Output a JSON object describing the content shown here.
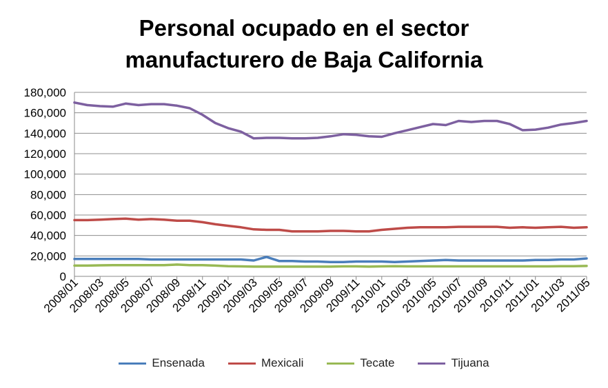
{
  "chart_data": {
    "type": "line",
    "title": "Personal ocupado en el sector manufacturero de Baja California",
    "title_lines": [
      "Personal ocupado en el sector",
      "manufacturero de Baja California"
    ],
    "ylim": [
      0,
      180000
    ],
    "yticks": [
      0,
      20000,
      40000,
      60000,
      80000,
      100000,
      120000,
      140000,
      160000,
      180000
    ],
    "ytick_labels": [
      "0",
      "20,000",
      "40,000",
      "60,000",
      "80,000",
      "100,000",
      "120,000",
      "140,000",
      "160,000",
      "180,000"
    ],
    "grid": true,
    "legend_position": "bottom",
    "x": [
      "2008/01",
      "2008/02",
      "2008/03",
      "2008/04",
      "2008/05",
      "2008/06",
      "2008/07",
      "2008/08",
      "2008/09",
      "2008/10",
      "2008/11",
      "2008/12",
      "2009/01",
      "2009/02",
      "2009/03",
      "2009/04",
      "2009/05",
      "2009/06",
      "2009/07",
      "2009/08",
      "2009/09",
      "2009/10",
      "2009/11",
      "2009/12",
      "2010/01",
      "2010/02",
      "2010/03",
      "2010/04",
      "2010/05",
      "2010/06",
      "2010/07",
      "2010/08",
      "2010/09",
      "2010/10",
      "2010/11",
      "2010/12",
      "2011/01",
      "2011/02",
      "2011/03",
      "2011/04",
      "2011/05"
    ],
    "x_tick_labels": [
      "2008/01",
      "2008/03",
      "2008/05",
      "2008/07",
      "2008/09",
      "2008/11",
      "2009/01",
      "2009/03",
      "2009/05",
      "2009/07",
      "2009/09",
      "2009/11",
      "2010/01",
      "2010/03",
      "2010/05",
      "2010/07",
      "2010/09",
      "2010/11",
      "2011/01",
      "2011/03",
      "2011/05"
    ],
    "series": [
      {
        "name": "Ensenada",
        "color": "#4a7ebb",
        "values": [
          17000,
          17000,
          17000,
          17000,
          17000,
          17000,
          16500,
          16500,
          16500,
          16500,
          16500,
          16500,
          16500,
          16500,
          15500,
          19000,
          15000,
          15000,
          14500,
          14500,
          14000,
          14000,
          14500,
          14500,
          14500,
          14000,
          14500,
          15000,
          15500,
          16000,
          15500,
          15500,
          15500,
          15500,
          15500,
          15500,
          16000,
          16000,
          16500,
          16500,
          17500
        ]
      },
      {
        "name": "Mexicali",
        "color": "#be4b48",
        "values": [
          55000,
          55000,
          55500,
          56000,
          56500,
          55500,
          56000,
          55500,
          54500,
          54500,
          53000,
          51000,
          49500,
          48000,
          46000,
          45500,
          45500,
          44000,
          44000,
          44000,
          44500,
          44500,
          44000,
          44000,
          45500,
          46500,
          47500,
          48000,
          48000,
          48000,
          48500,
          48500,
          48500,
          48500,
          47500,
          48000,
          47500,
          48000,
          48500,
          47500,
          48000
        ]
      },
      {
        "name": "Tecate",
        "color": "#98b954",
        "values": [
          10500,
          10500,
          10800,
          11000,
          11000,
          11000,
          11000,
          11000,
          11500,
          11000,
          11000,
          10500,
          10000,
          9800,
          9500,
          9500,
          9500,
          9500,
          9500,
          9500,
          9500,
          9800,
          9800,
          9500,
          9800,
          10000,
          9800,
          9800,
          9800,
          9800,
          9800,
          9800,
          9800,
          9800,
          9800,
          9800,
          9800,
          9800,
          10000,
          10000,
          10200
        ]
      },
      {
        "name": "Tijuana",
        "color": "#7d60a0",
        "values": [
          170000,
          167500,
          166500,
          166000,
          169000,
          167500,
          168500,
          168500,
          167000,
          164500,
          158000,
          150000,
          145000,
          141500,
          135000,
          135500,
          135500,
          135000,
          135000,
          135500,
          137000,
          139000,
          138500,
          137000,
          136500,
          140000,
          143000,
          146000,
          149000,
          148000,
          152000,
          151000,
          152000,
          152000,
          149000,
          143000,
          143500,
          145500,
          148500,
          150000,
          152000
        ]
      }
    ]
  }
}
